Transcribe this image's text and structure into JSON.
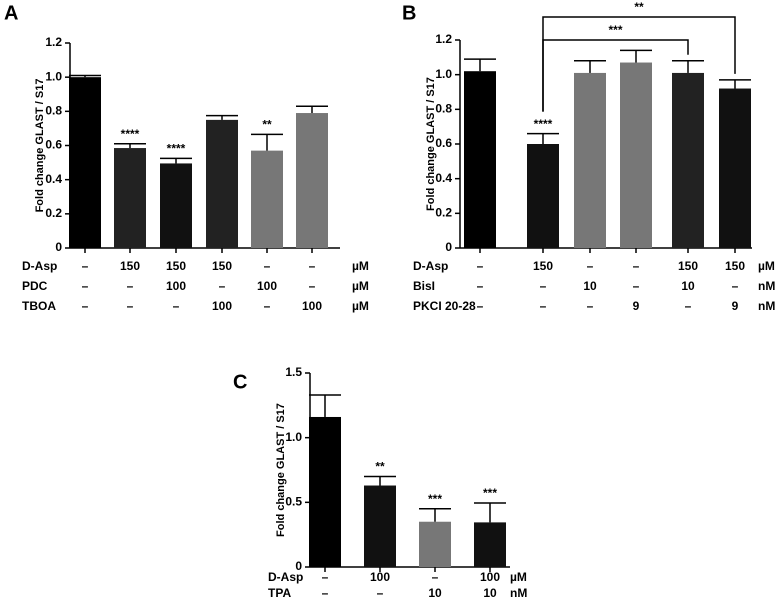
{
  "chart_data": [
    {
      "type": "bar",
      "panel": "A",
      "y_label": "Fold change GLAST / S17",
      "ylim": [
        0,
        1.2
      ],
      "yticks": [
        0,
        0.2,
        0.4,
        0.6,
        0.8,
        {
          "value": 1,
          "label": "1.0"
        },
        1.2
      ],
      "values": [
        1.0,
        0.585,
        0.495,
        0.75,
        0.57,
        0.79
      ],
      "errors": [
        0.01,
        0.025,
        0.03,
        0.025,
        0.095,
        0.04
      ],
      "colors": [
        "#000000",
        "#222222",
        "#111111",
        "#222222",
        "#777777",
        "#777777"
      ],
      "annotations": [
        null,
        "****",
        "****",
        null,
        "**",
        null
      ],
      "conditions": [
        {
          "label": "D-Asp",
          "values": [
            "–",
            "150",
            "150",
            "150",
            "–",
            "–"
          ],
          "unit": "µM"
        },
        {
          "label": "PDC",
          "values": [
            "–",
            "–",
            "100",
            "–",
            "100",
            "–"
          ],
          "unit": "µM"
        },
        {
          "label": "TBOA",
          "values": [
            "–",
            "–",
            "–",
            "100",
            "–",
            "100"
          ],
          "unit": "µM"
        }
      ]
    },
    {
      "type": "bar",
      "panel": "B",
      "y_label": "Fold change GLAST / S17",
      "ylim": [
        0,
        1.2
      ],
      "yticks": [
        0,
        0.2,
        0.4,
        0.6,
        0.8,
        {
          "value": 1,
          "label": "1.0"
        },
        1.2
      ],
      "values": [
        1.02,
        0.6,
        1.01,
        1.07,
        1.01,
        0.92
      ],
      "errors": [
        0.07,
        0.06,
        0.07,
        0.07,
        0.07,
        0.05
      ],
      "colors": [
        "#000000",
        "#111111",
        "#777777",
        "#777777",
        "#222222",
        "#111111"
      ],
      "annotations": [
        null,
        "****",
        null,
        null,
        null,
        null
      ],
      "comparisons": [
        {
          "bars": [
            1,
            5
          ],
          "label": "**"
        },
        {
          "bars": [
            1,
            4
          ],
          "label": "***"
        }
      ],
      "conditions": [
        {
          "label": "D-Asp",
          "values": [
            "–",
            "150",
            "–",
            "–",
            "150",
            "150"
          ],
          "unit": "µM"
        },
        {
          "label": "BisI",
          "values": [
            "–",
            "–",
            "10",
            "–",
            "10",
            "–"
          ],
          "unit": "nM"
        },
        {
          "label": "PKCI 20-28",
          "values": [
            "–",
            "–",
            "–",
            "9",
            "–",
            "9"
          ],
          "unit": "nM"
        }
      ]
    },
    {
      "type": "bar",
      "panel": "C",
      "y_label": "Fold change GLAST / S17",
      "ylim": [
        0,
        1.5
      ],
      "yticks": [
        0,
        0.5,
        {
          "value": 1,
          "label": "1.0"
        },
        1.5
      ],
      "values": [
        1.16,
        0.63,
        0.35,
        0.345
      ],
      "errors": [
        0.17,
        0.07,
        0.1,
        0.15
      ],
      "colors": [
        "#000000",
        "#111111",
        "#777777",
        "#111111"
      ],
      "annotations": [
        null,
        "**",
        "***",
        "***"
      ],
      "conditions": [
        {
          "label": "D-Asp",
          "values": [
            "–",
            "100",
            "–",
            "100"
          ],
          "unit": "µM"
        },
        {
          "label": "TPA",
          "values": [
            "–",
            "–",
            "10",
            "10"
          ],
          "unit": "nM"
        }
      ]
    }
  ]
}
